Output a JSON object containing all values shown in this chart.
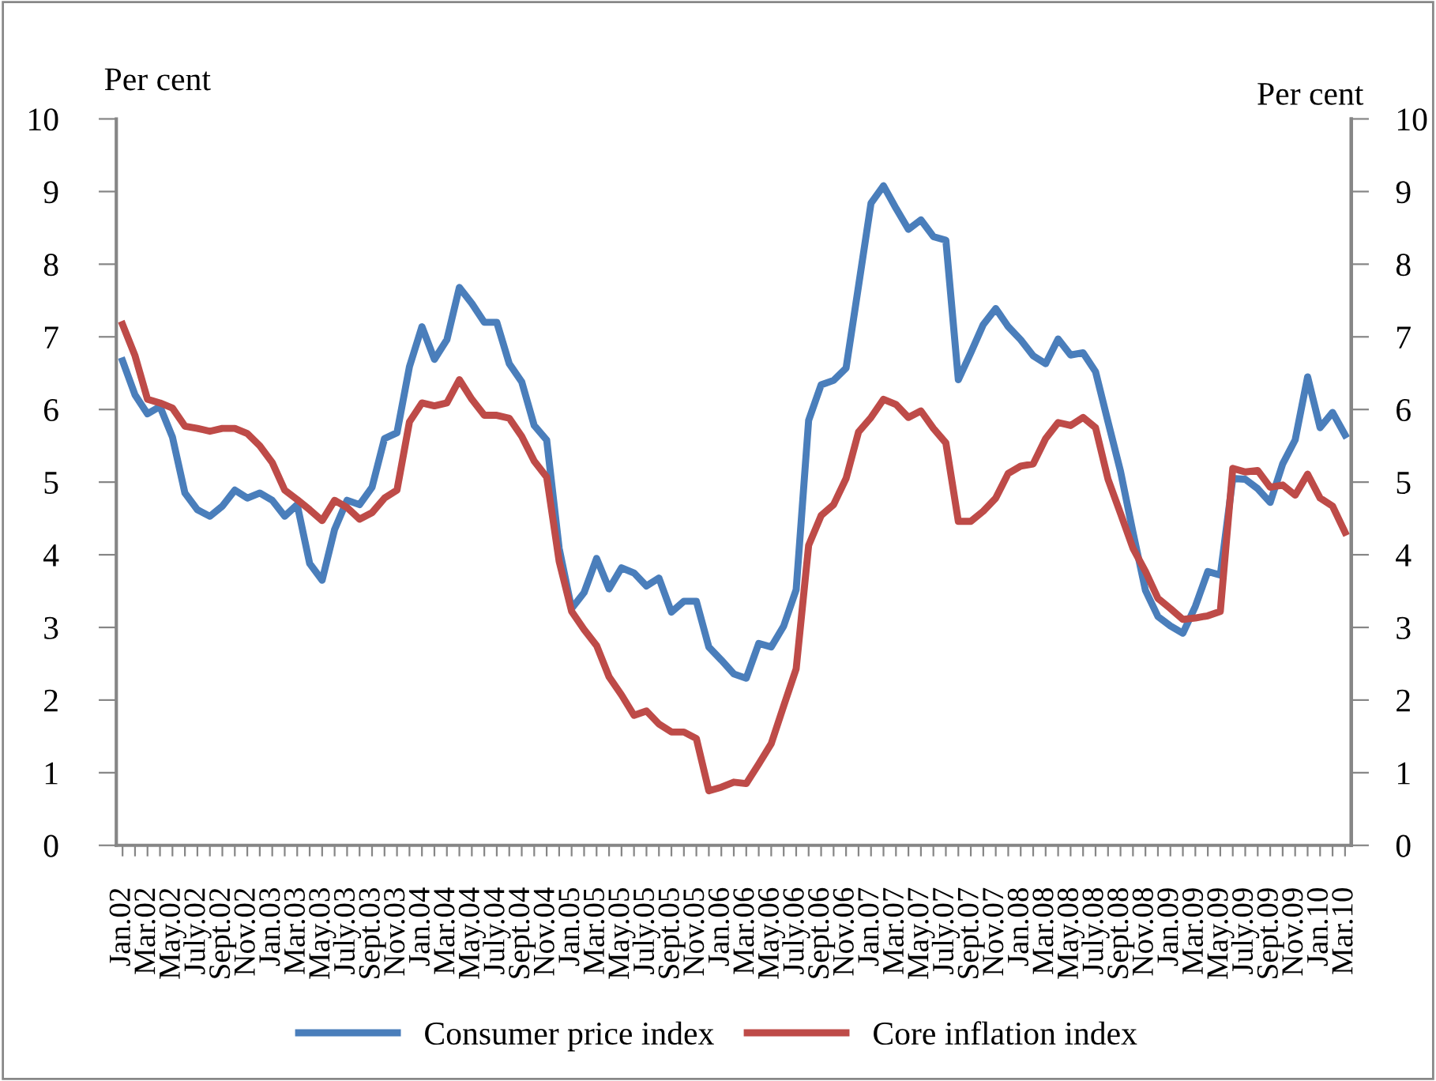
{
  "chart_data": {
    "type": "line",
    "xlabel": null,
    "ylabel": "Per cent",
    "y2label": "Per cent",
    "categories": [
      "Jan.02",
      null,
      "Mar.02",
      null,
      "May.02",
      null,
      "July.02",
      null,
      "Sept.02",
      null,
      "Nov.02",
      null,
      "Jan.03",
      null,
      "Mar.03",
      null,
      "May.03",
      null,
      "July.03",
      null,
      "Sept.03",
      null,
      "Nov.03",
      null,
      "Jan.04",
      null,
      "Mar.04",
      null,
      "May.04",
      null,
      "July.04",
      null,
      "Sept.04",
      null,
      "Nov.04",
      null,
      "Jan.05",
      null,
      "Mar.05",
      null,
      "May.05",
      null,
      "July.05",
      null,
      "Sept.05",
      null,
      "Nov.05",
      null,
      "Jan.06",
      null,
      "Mar.06",
      null,
      "May.06",
      null,
      "July.06",
      null,
      "Sept.06",
      null,
      "Nov.06",
      null,
      "Jan.07",
      null,
      "Mar.07",
      null,
      "May.07",
      null,
      "July.07",
      null,
      "Sept.07",
      null,
      "Nov.07",
      null,
      "Jan.08",
      null,
      "Mar.08",
      null,
      "May.08",
      null,
      "July.08",
      null,
      "Sept.08",
      null,
      "Nov.08",
      null,
      "Jan.09",
      null,
      "Mar.09",
      null,
      "May.09",
      null,
      "July.09",
      null,
      "Sept.09",
      null,
      "Nov.09",
      null,
      "Jan.10",
      null,
      "Mar.10"
    ],
    "series": [
      {
        "name": "Consumer price index",
        "color": "#4a7ebb",
        "values": [
          6.67,
          6.2,
          5.94,
          6.04,
          5.62,
          4.85,
          4.62,
          4.53,
          4.67,
          4.89,
          4.78,
          4.85,
          4.75,
          4.53,
          4.69,
          3.88,
          3.65,
          4.35,
          4.75,
          4.69,
          4.93,
          5.6,
          5.68,
          6.59,
          7.14,
          6.69,
          6.96,
          7.68,
          7.46,
          7.2,
          7.2,
          6.63,
          6.38,
          5.78,
          5.58,
          4.09,
          3.26,
          3.48,
          3.95,
          3.53,
          3.82,
          3.75,
          3.57,
          3.68,
          3.21,
          3.36,
          3.36,
          2.73,
          2.55,
          2.36,
          2.3,
          2.78,
          2.73,
          3.02,
          3.52,
          5.85,
          6.34,
          6.4,
          6.57,
          7.7,
          8.84,
          9.08,
          8.77,
          8.48,
          8.61,
          8.38,
          8.33,
          6.41,
          6.78,
          7.17,
          7.39,
          7.14,
          6.96,
          6.74,
          6.63,
          6.97,
          6.75,
          6.78,
          6.52,
          5.83,
          5.15,
          4.31,
          3.51,
          3.15,
          3.02,
          2.92,
          3.29,
          3.77,
          3.72,
          5.05,
          5.04,
          4.91,
          4.72,
          5.25,
          5.58,
          6.45,
          5.75,
          5.96,
          5.65
        ]
      },
      {
        "name": "Core inflation index",
        "color": "#be4b48",
        "values": [
          7.17,
          6.74,
          6.14,
          6.09,
          6.02,
          5.77,
          5.74,
          5.7,
          5.74,
          5.74,
          5.67,
          5.5,
          5.27,
          4.89,
          4.76,
          4.62,
          4.47,
          4.75,
          4.65,
          4.49,
          4.58,
          4.78,
          4.89,
          5.83,
          6.09,
          6.05,
          6.09,
          6.41,
          6.14,
          5.92,
          5.92,
          5.88,
          5.63,
          5.29,
          5.07,
          3.91,
          3.22,
          2.97,
          2.75,
          2.32,
          2.07,
          1.79,
          1.85,
          1.67,
          1.56,
          1.56,
          1.47,
          0.75,
          0.8,
          0.87,
          0.85,
          1.12,
          1.4,
          1.92,
          2.43,
          4.13,
          4.54,
          4.69,
          5.05,
          5.69,
          5.89,
          6.14,
          6.07,
          5.89,
          5.98,
          5.74,
          5.54,
          4.46,
          4.46,
          4.6,
          4.78,
          5.12,
          5.22,
          5.25,
          5.6,
          5.82,
          5.78,
          5.89,
          5.75,
          5.04,
          4.57,
          4.09,
          3.77,
          3.4,
          3.26,
          3.11,
          3.13,
          3.16,
          3.22,
          5.19,
          5.14,
          5.16,
          4.93,
          4.96,
          4.82,
          5.11,
          4.78,
          4.67,
          4.31
        ]
      }
    ],
    "ylim": [
      0,
      10
    ],
    "yticks": [
      0,
      1,
      2,
      3,
      4,
      5,
      6,
      7,
      8,
      9,
      10
    ],
    "y2lim": [
      0,
      10
    ],
    "y2ticks": [
      0,
      1,
      2,
      3,
      4,
      5,
      6,
      7,
      8,
      9,
      10
    ],
    "grid": false,
    "legend": "bottom",
    "marker": "none",
    "line_style": "solid"
  }
}
